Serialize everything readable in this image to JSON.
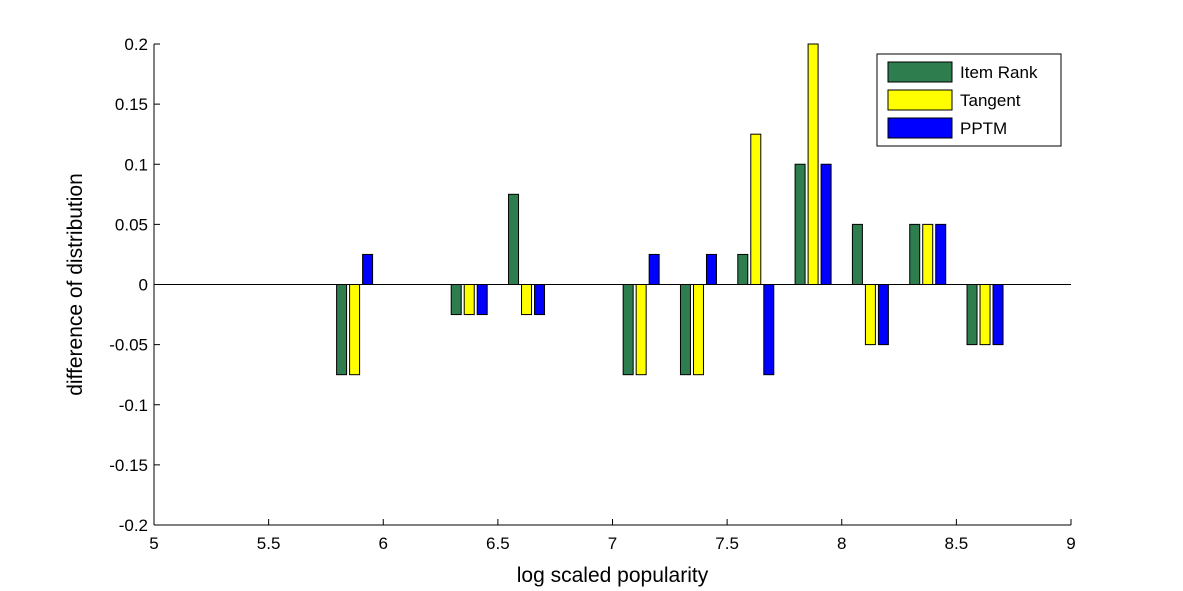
{
  "chart_data": {
    "type": "bar",
    "xlabel": "log scaled popularity",
    "ylabel": "difference of distribution",
    "xlim": [
      5,
      9
    ],
    "ylim": [
      -0.2,
      0.2
    ],
    "xticks": [
      5,
      5.5,
      6,
      6.5,
      7,
      7.5,
      8,
      8.5,
      9
    ],
    "xtick_labels": [
      "5",
      "5.5",
      "6",
      "6.5",
      "7",
      "7.5",
      "8",
      "8.5",
      "9"
    ],
    "yticks": [
      -0.2,
      -0.15,
      -0.1,
      -0.05,
      0,
      0.05,
      0.1,
      0.15,
      0.2
    ],
    "ytick_labels": [
      "-0.2",
      "-0.15",
      "-0.1",
      "-0.05",
      "0",
      "0.05",
      "0.1",
      "0.15",
      "0.2"
    ],
    "grid": false,
    "legend_position": "top-right",
    "x": [
      5.875,
      6.375,
      6.625,
      7.125,
      7.375,
      7.625,
      7.875,
      8.125,
      8.375,
      8.625
    ],
    "series": [
      {
        "name": "Item Rank",
        "color": "#2e7d4f",
        "values": [
          -0.075,
          -0.025,
          0.075,
          -0.075,
          -0.075,
          0.025,
          0.1,
          0.05,
          0.05,
          -0.05
        ]
      },
      {
        "name": "Tangent",
        "color": "#ffff00",
        "values": [
          -0.075,
          -0.025,
          -0.025,
          -0.075,
          -0.075,
          0.125,
          0.2,
          -0.05,
          0.05,
          -0.05
        ]
      },
      {
        "name": "PPTM",
        "color": "#0000ff",
        "values": [
          0.025,
          -0.025,
          -0.025,
          0.025,
          0.025,
          -0.075,
          0.1,
          -0.05,
          0.05,
          -0.05
        ]
      }
    ]
  }
}
